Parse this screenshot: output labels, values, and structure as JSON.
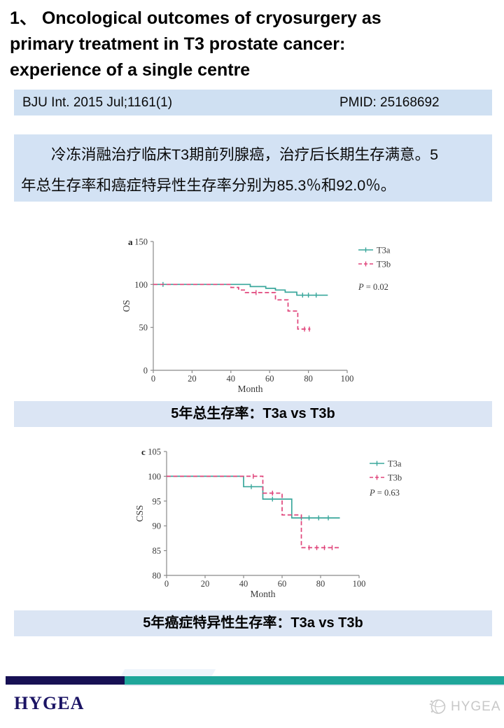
{
  "title": "1、 Oncological outcomes of cryosurgery as\nprimary treatment in T3 prostate cancer:\nexperience of a single centre",
  "citation": {
    "left": "BJU Int. 2015 Jul;1161(1)",
    "right": "PMID: 25168692"
  },
  "summary": "冷冻消融治疗临床T3期前列腺癌，治疗后长期生存满意。5\n年总生存率和癌症特异性生存率分别为85.3％和92.0％。",
  "captions": {
    "os": "5年总生存率：T3a vs T3b",
    "css": "5年癌症特异性生存率：T3a vs T3b"
  },
  "footer": {
    "logo_text": "HYGEA",
    "watermark_text": "HYGEA"
  },
  "colors": {
    "t3a_teal": "#3aa79c",
    "t3b_pink": "#e0457b",
    "citation_bg": "#cfe0f2",
    "summary_bg": "#d3e2f4",
    "caption_bg": "#dbe5f4",
    "footer_navy": "#171054",
    "footer_teal": "#1fa69a",
    "logo_navy": "#1b1464",
    "watermark_gray": "#c8c8c8"
  },
  "chart_data": [
    {
      "type": "line",
      "subtype": "kaplan-meier-step",
      "panel": "a",
      "xlabel": "Month",
      "ylabel": "OS",
      "p_label": "P = 0.02",
      "xlim": [
        0,
        100
      ],
      "ylim": [
        0,
        150
      ],
      "xticks": [
        0,
        20,
        40,
        60,
        80,
        100
      ],
      "yticks": [
        0,
        50,
        100,
        150
      ],
      "legend_position": "upper right, outside plot",
      "grid": false,
      "series": [
        {
          "name": "T3a",
          "color": "#3aa79c",
          "dashed": false,
          "points": [
            [
              0,
              100
            ],
            [
              50,
              100
            ],
            [
              50,
              97.5
            ],
            [
              58,
              97.5
            ],
            [
              58,
              95.5
            ],
            [
              63,
              95.5
            ],
            [
              63,
              93.5
            ],
            [
              68,
              93.5
            ],
            [
              68,
              91
            ],
            [
              74,
              91
            ],
            [
              74,
              87.5
            ],
            [
              90,
              87.5
            ]
          ],
          "censors": [
            [
              5,
              100
            ],
            [
              77,
              87.5
            ],
            [
              80,
              87.5
            ],
            [
              84,
              87.5
            ]
          ]
        },
        {
          "name": "T3b",
          "color": "#e0457b",
          "dashed": true,
          "points": [
            [
              0,
              100
            ],
            [
              40,
              100
            ],
            [
              40,
              96.5
            ],
            [
              44,
              96.5
            ],
            [
              44,
              93.5
            ],
            [
              47.5,
              93.5
            ],
            [
              47.5,
              90.5
            ],
            [
              63,
              90.5
            ],
            [
              63,
              82
            ],
            [
              69.5,
              82
            ],
            [
              69.5,
              69
            ],
            [
              74.5,
              69
            ],
            [
              74.5,
              48
            ],
            [
              81,
              48
            ]
          ],
          "censors": [
            [
              53,
              90.5
            ],
            [
              78,
              48
            ],
            [
              80.5,
              48
            ]
          ]
        }
      ]
    },
    {
      "type": "line",
      "subtype": "kaplan-meier-step",
      "panel": "c",
      "xlabel": "Month",
      "ylabel": "CSS",
      "p_label": "P = 0.63",
      "xlim": [
        0,
        100
      ],
      "ylim": [
        80,
        105
      ],
      "xticks": [
        0,
        20,
        40,
        60,
        80,
        100
      ],
      "yticks": [
        80,
        85,
        90,
        95,
        100,
        105
      ],
      "legend_position": "upper right, outside plot",
      "grid": false,
      "series": [
        {
          "name": "T3a",
          "color": "#3aa79c",
          "dashed": false,
          "points": [
            [
              0,
              100
            ],
            [
              40,
              100
            ],
            [
              40,
              97.9
            ],
            [
              50,
              97.9
            ],
            [
              50,
              95.4
            ],
            [
              65,
              95.4
            ],
            [
              65,
              91.6
            ],
            [
              90,
              91.6
            ]
          ],
          "censors": [
            [
              44,
              97.9
            ],
            [
              55,
              95.4
            ],
            [
              70,
              91.6
            ],
            [
              74,
              91.6
            ],
            [
              79,
              91.6
            ],
            [
              84,
              91.6
            ]
          ]
        },
        {
          "name": "T3b",
          "color": "#e0457b",
          "dashed": true,
          "points": [
            [
              0,
              100
            ],
            [
              50,
              100
            ],
            [
              50,
              96.6
            ],
            [
              60,
              96.6
            ],
            [
              60,
              92.2
            ],
            [
              70,
              92.2
            ],
            [
              70,
              85.6
            ],
            [
              90,
              85.6
            ]
          ],
          "censors": [
            [
              45,
              100
            ],
            [
              55,
              96.6
            ],
            [
              74,
              85.6
            ],
            [
              78,
              85.6
            ],
            [
              82,
              85.6
            ],
            [
              86,
              85.6
            ]
          ]
        }
      ]
    }
  ]
}
